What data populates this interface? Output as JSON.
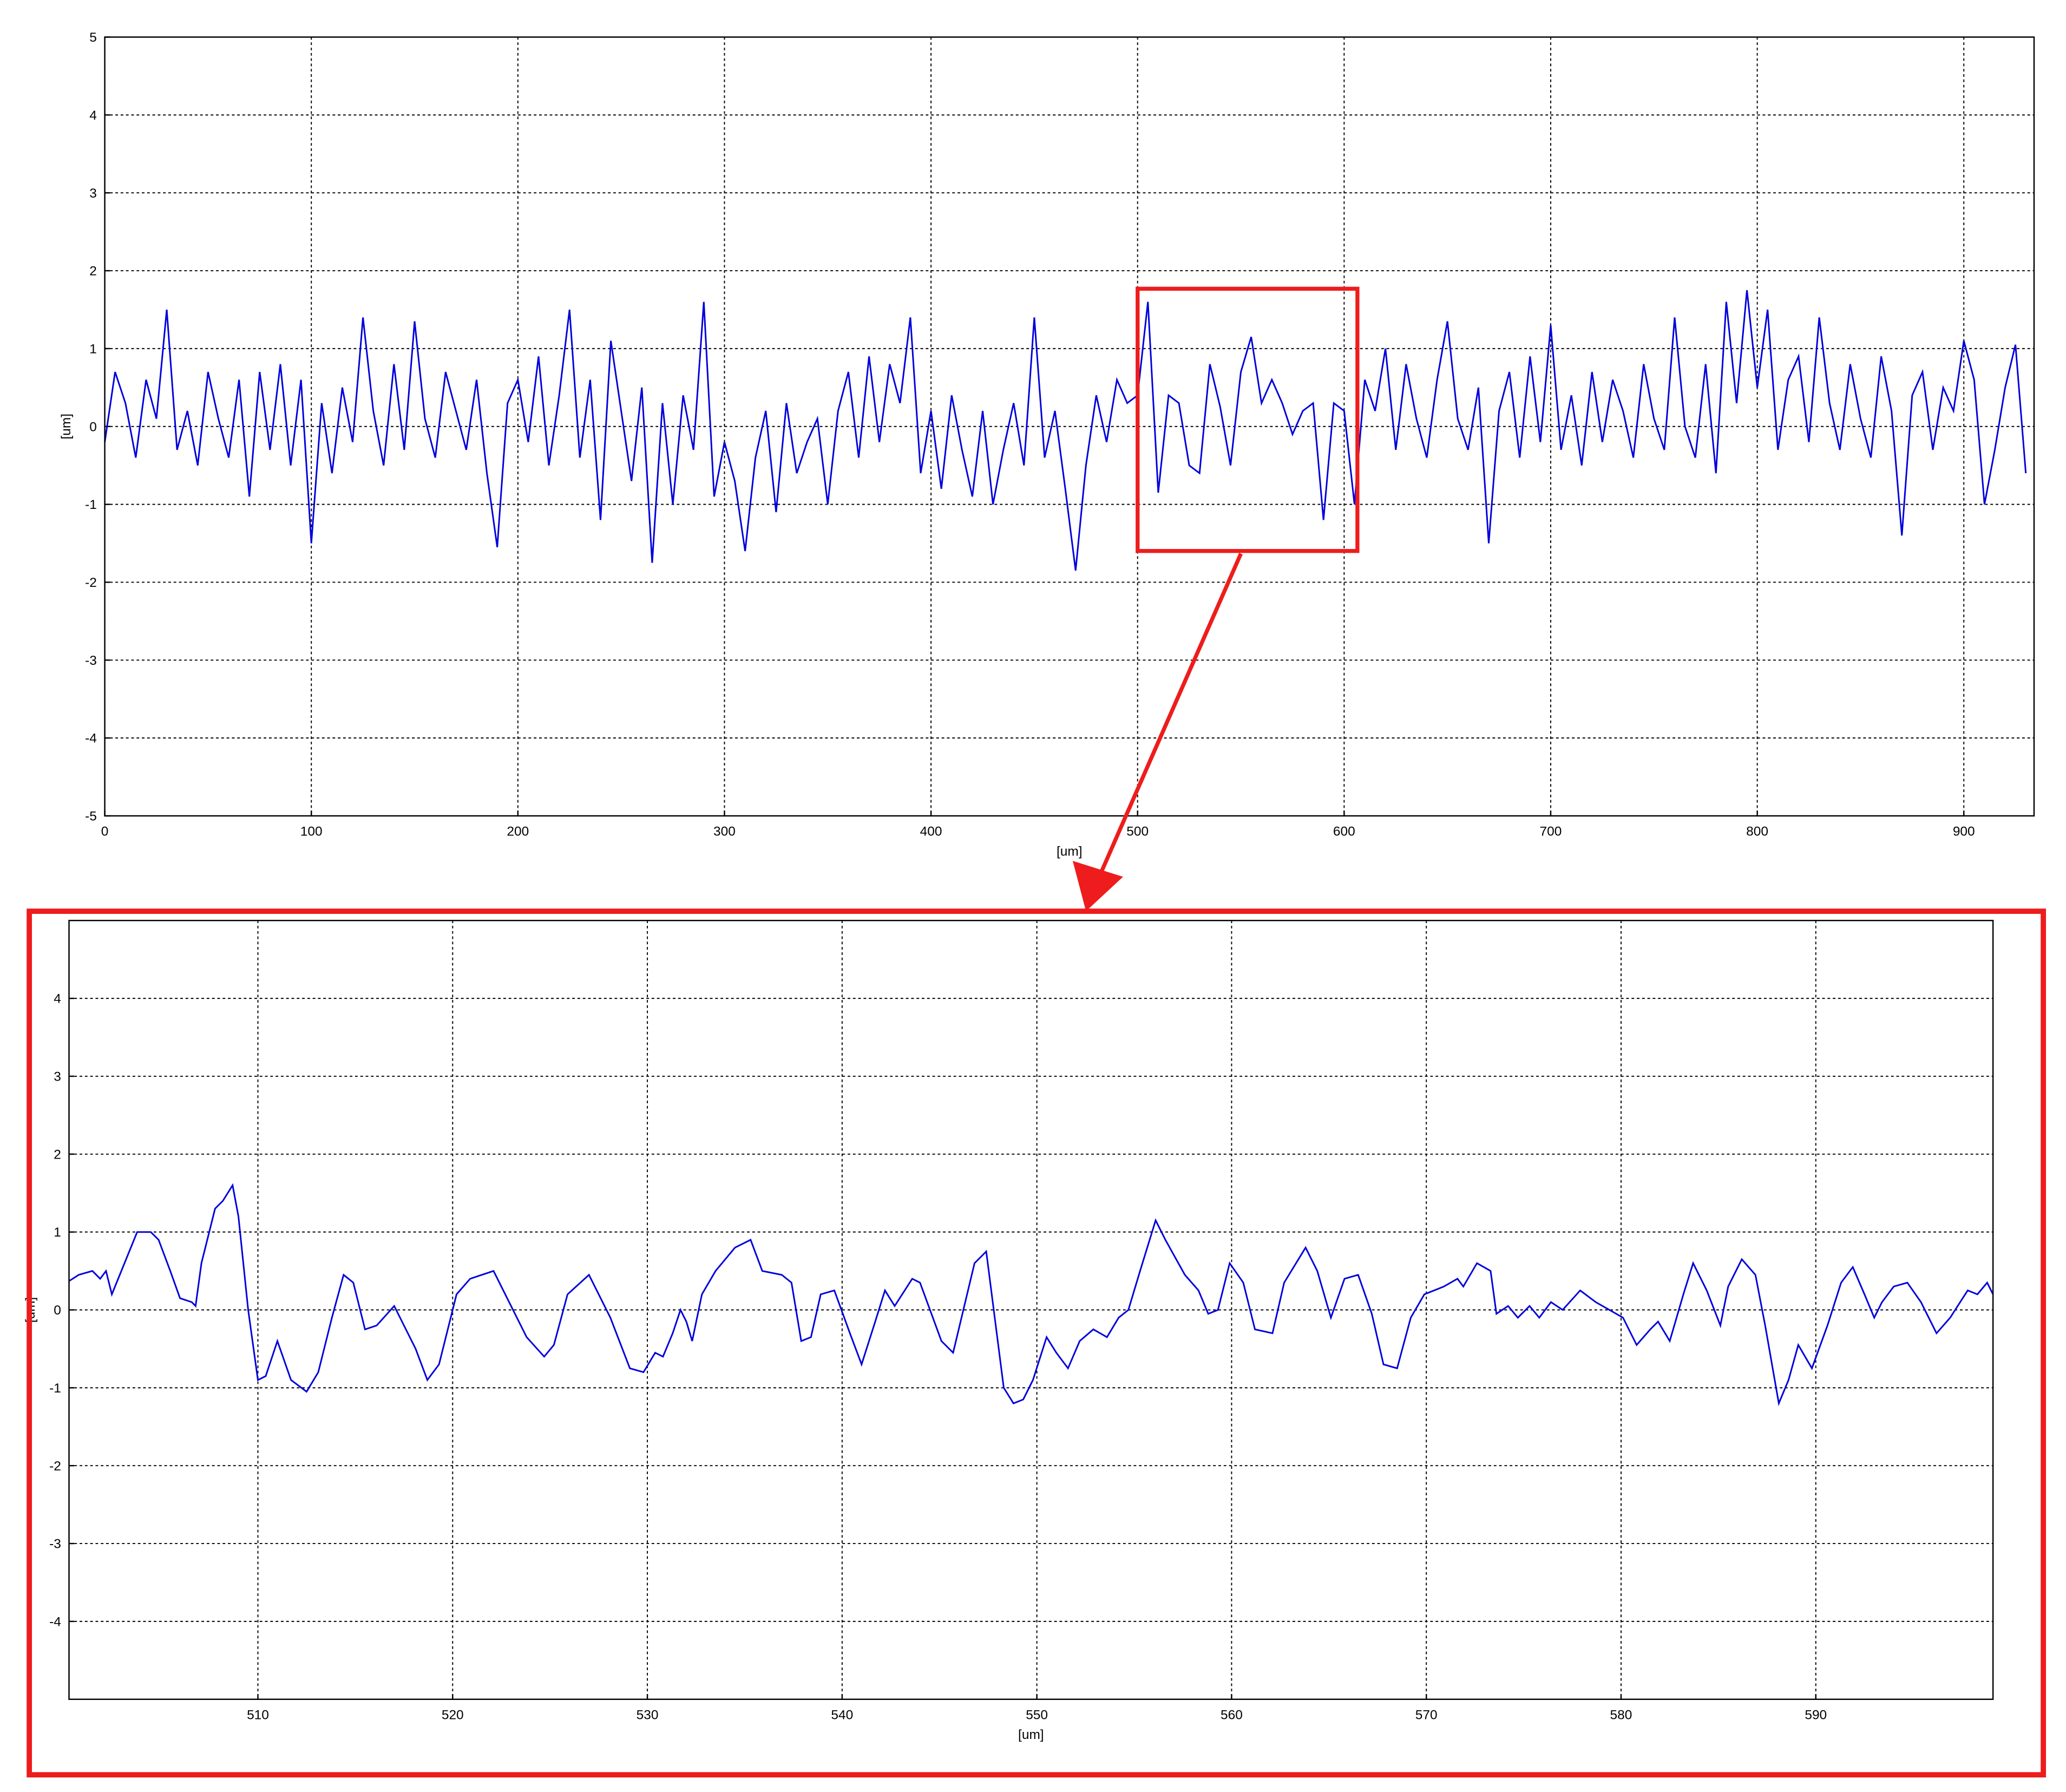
{
  "chart_data": [
    {
      "type": "line",
      "xlabel": "[um]",
      "ylabel": "[um]",
      "color": "#0000dd",
      "grid": true,
      "xlim": [
        0,
        934
      ],
      "ylim": [
        -5,
        5
      ],
      "xticks": [
        0,
        100,
        200,
        300,
        400,
        500,
        600,
        700,
        800,
        900
      ],
      "yticks": [
        -5,
        -4,
        -3,
        -2,
        -1,
        0,
        1,
        2,
        3,
        4,
        5
      ],
      "x": [
        0,
        5,
        10,
        15,
        20,
        25,
        30,
        35,
        40,
        45,
        50,
        55,
        60,
        65,
        70,
        75,
        80,
        85,
        90,
        95,
        100,
        105,
        110,
        115,
        120,
        125,
        130,
        135,
        140,
        145,
        150,
        155,
        160,
        165,
        170,
        175,
        180,
        185,
        190,
        195,
        200,
        205,
        210,
        215,
        220,
        225,
        230,
        235,
        240,
        245,
        250,
        255,
        260,
        265,
        270,
        275,
        280,
        285,
        290,
        295,
        300,
        305,
        310,
        315,
        320,
        325,
        330,
        335,
        340,
        345,
        350,
        355,
        360,
        365,
        370,
        375,
        380,
        385,
        390,
        395,
        400,
        405,
        410,
        415,
        420,
        425,
        430,
        435,
        440,
        445,
        450,
        455,
        460,
        465,
        470,
        475,
        480,
        485,
        490,
        495,
        500,
        505,
        510,
        515,
        520,
        525,
        530,
        535,
        540,
        545,
        550,
        555,
        560,
        565,
        570,
        575,
        580,
        585,
        590,
        595,
        600,
        605,
        610,
        615,
        620,
        625,
        630,
        635,
        640,
        645,
        650,
        655,
        660,
        665,
        670,
        675,
        680,
        685,
        690,
        695,
        700,
        705,
        710,
        715,
        720,
        725,
        730,
        735,
        740,
        745,
        750,
        755,
        760,
        765,
        770,
        775,
        780,
        785,
        790,
        795,
        800,
        805,
        810,
        815,
        820,
        825,
        830,
        835,
        840,
        845,
        850,
        855,
        860,
        865,
        870,
        875,
        880,
        885,
        890,
        895,
        900,
        905,
        910,
        915,
        920,
        925,
        930
      ],
      "values": [
        -0.2,
        0.7,
        0.3,
        -0.4,
        0.6,
        0.1,
        1.5,
        -0.3,
        0.2,
        -0.5,
        0.7,
        0.1,
        -0.4,
        0.6,
        -0.9,
        0.7,
        -0.3,
        0.8,
        -0.5,
        0.6,
        -1.5,
        0.3,
        -0.6,
        0.5,
        -0.2,
        1.4,
        0.2,
        -0.5,
        0.8,
        -0.3,
        1.35,
        0.1,
        -0.4,
        0.7,
        0.2,
        -0.3,
        0.6,
        -0.6,
        -1.55,
        0.3,
        0.6,
        -0.2,
        0.9,
        -0.5,
        0.4,
        1.5,
        -0.4,
        0.6,
        -1.2,
        1.1,
        0.2,
        -0.7,
        0.5,
        -1.75,
        0.3,
        -1.0,
        0.4,
        -0.3,
        1.6,
        -0.9,
        -0.2,
        -0.7,
        -1.6,
        -0.4,
        0.2,
        -1.1,
        0.3,
        -0.6,
        -0.2,
        0.1,
        -1.0,
        0.2,
        0.7,
        -0.4,
        0.9,
        -0.2,
        0.8,
        0.3,
        1.4,
        -0.6,
        0.2,
        -0.8,
        0.4,
        -0.3,
        -0.9,
        0.2,
        -1.0,
        -0.3,
        0.3,
        -0.5,
        1.4,
        -0.4,
        0.2,
        -0.8,
        -1.85,
        -0.5,
        0.4,
        -0.2,
        0.6,
        0.3,
        0.4,
        1.6,
        -0.85,
        0.4,
        0.3,
        -0.5,
        -0.6,
        0.8,
        0.25,
        -0.5,
        0.7,
        1.15,
        0.3,
        0.6,
        0.3,
        -0.1,
        0.2,
        0.3,
        -1.2,
        0.3,
        0.2,
        -1.0,
        0.6,
        0.2,
        1.0,
        -0.3,
        0.8,
        0.1,
        -0.4,
        0.6,
        1.35,
        0.1,
        -0.3,
        0.5,
        -1.5,
        0.2,
        0.7,
        -0.4,
        0.9,
        -0.2,
        1.3,
        -0.3,
        0.4,
        -0.5,
        0.7,
        -0.2,
        0.6,
        0.2,
        -0.4,
        0.8,
        0.1,
        -0.3,
        1.4,
        0.0,
        -0.4,
        0.8,
        -0.6,
        1.6,
        0.3,
        1.75,
        0.5,
        1.5,
        -0.3,
        0.6,
        0.9,
        -0.2,
        1.4,
        0.3,
        -0.3,
        0.8,
        0.1,
        -0.4,
        0.9,
        0.2,
        -1.4,
        0.4,
        0.7,
        -0.3,
        0.5,
        0.2,
        1.1,
        0.6,
        -1.0,
        -0.3,
        0.5,
        1.05,
        -0.6
      ]
    },
    {
      "type": "line",
      "xlabel": "[um]",
      "ylabel": "[um]",
      "color": "#0000dd",
      "grid": true,
      "xlim": [
        500.3,
        599.1
      ],
      "ylim": [
        -5,
        5
      ],
      "xticks": [
        510,
        520,
        530,
        540,
        550,
        560,
        570,
        580,
        590
      ],
      "yticks": [
        -4,
        -3,
        -2,
        -1,
        0,
        1,
        2,
        3,
        4
      ],
      "x": [
        500.3,
        500.8,
        501.5,
        501.9,
        502.2,
        502.5,
        503.8,
        504.5,
        504.9,
        505.5,
        506.0,
        506.6,
        506.8,
        507.1,
        507.8,
        508.2,
        508.7,
        509.0,
        509.5,
        510.0,
        510.4,
        511.0,
        511.7,
        512.5,
        513.1,
        513.8,
        514.4,
        514.9,
        515.5,
        516.1,
        517.0,
        517.5,
        518.1,
        518.7,
        519.3,
        520.2,
        520.9,
        522.1,
        522.9,
        523.8,
        524.7,
        525.2,
        525.9,
        527.0,
        528.1,
        529.1,
        529.8,
        530.4,
        530.8,
        531.3,
        531.7,
        532.0,
        532.3,
        532.8,
        533.5,
        534.5,
        535.3,
        535.9,
        536.9,
        537.4,
        537.9,
        538.4,
        538.9,
        539.6,
        540.4,
        541.0,
        541.7,
        542.2,
        542.7,
        543.6,
        544.0,
        545.1,
        545.7,
        546.8,
        547.4,
        548.3,
        548.8,
        549.3,
        549.8,
        550.5,
        551.0,
        551.6,
        552.2,
        552.9,
        553.6,
        554.2,
        554.7,
        555.3,
        556.1,
        556.6,
        557.6,
        558.3,
        558.8,
        559.3,
        559.9,
        560.6,
        561.2,
        562.1,
        562.7,
        563.8,
        564.4,
        565.1,
        565.8,
        566.5,
        567.2,
        567.8,
        568.5,
        569.2,
        569.9,
        570.9,
        571.6,
        571.9,
        572.6,
        573.3,
        573.6,
        574.2,
        574.7,
        575.3,
        575.8,
        576.4,
        577.0,
        577.9,
        578.7,
        579.4,
        580.1,
        580.8,
        581.5,
        581.9,
        582.5,
        583.2,
        583.7,
        584.4,
        585.1,
        585.5,
        586.2,
        586.9,
        587.4,
        588.1,
        588.6,
        589.1,
        589.8,
        590.6,
        591.3,
        591.9,
        592.5,
        593.0,
        593.4,
        594.0,
        594.7,
        595.4,
        596.2,
        596.9,
        597.8,
        598.3,
        598.8,
        599.1
      ],
      "values": [
        0.37,
        0.45,
        0.5,
        0.4,
        0.5,
        0.2,
        1.0,
        1.0,
        0.9,
        0.5,
        0.15,
        0.1,
        0.05,
        0.6,
        1.3,
        1.4,
        1.6,
        1.2,
        0,
        -0.9,
        -0.85,
        -0.4,
        -0.9,
        -1.05,
        -0.8,
        -0.1,
        0.45,
        0.35,
        -0.25,
        -0.2,
        0.05,
        -0.2,
        -0.5,
        -0.9,
        -0.7,
        0.2,
        0.4,
        0.5,
        0.1,
        -0.35,
        -0.6,
        -0.45,
        0.2,
        0.45,
        -0.1,
        -0.75,
        -0.8,
        -0.55,
        -0.6,
        -0.3,
        0,
        -0.15,
        -0.4,
        0.2,
        0.5,
        0.8,
        0.9,
        0.5,
        0.45,
        0.35,
        -0.4,
        -0.35,
        0.2,
        0.25,
        -0.3,
        -0.7,
        -0.15,
        0.25,
        0.05,
        0.4,
        0.35,
        -0.4,
        -0.55,
        0.6,
        0.75,
        -1.0,
        -1.2,
        -1.15,
        -0.9,
        -0.35,
        -0.55,
        -0.75,
        -0.4,
        -0.25,
        -0.35,
        -0.1,
        0,
        0.5,
        1.15,
        0.9,
        0.45,
        0.25,
        -0.05,
        0,
        0.6,
        0.35,
        -0.25,
        -0.3,
        0.35,
        0.8,
        0.5,
        -0.1,
        0.4,
        0.45,
        -0.05,
        -0.7,
        -0.75,
        -0.1,
        0.2,
        0.3,
        0.4,
        0.3,
        0.6,
        0.5,
        -0.05,
        0.05,
        -0.1,
        0.05,
        -0.1,
        0.1,
        0,
        0.25,
        0.1,
        0,
        -0.1,
        -0.45,
        -0.25,
        -0.15,
        -0.4,
        0.2,
        0.6,
        0.25,
        -0.2,
        0.3,
        0.65,
        0.45,
        -0.2,
        -1.2,
        -0.9,
        -0.45,
        -0.75,
        -0.2,
        0.35,
        0.55,
        0.2,
        -0.1,
        0.1,
        0.3,
        0.35,
        0.1,
        -0.3,
        -0.1,
        0.25,
        0.2,
        0.35,
        0.2
      ]
    }
  ]
}
